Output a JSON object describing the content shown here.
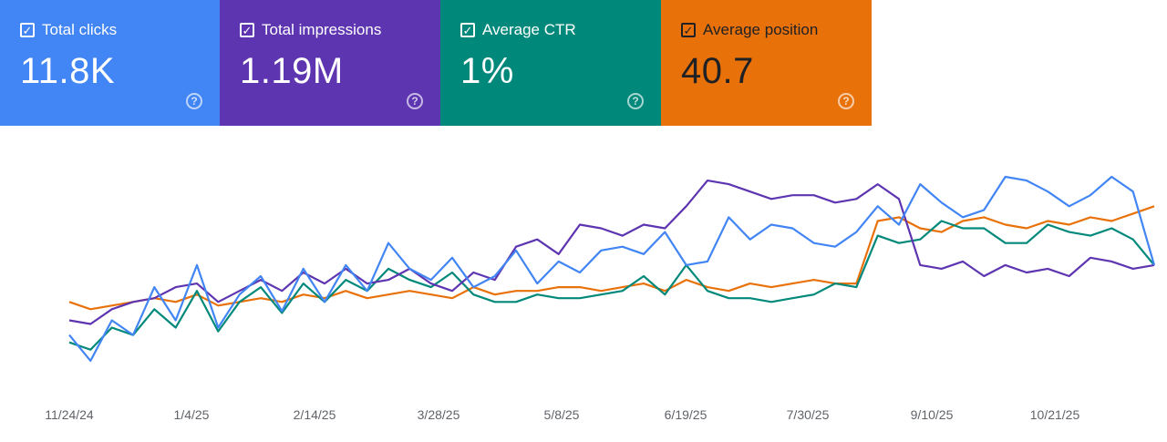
{
  "metrics": [
    {
      "label": "Total clicks",
      "value": "11.8K",
      "color": "#4285f4",
      "checked": true
    },
    {
      "label": "Total impressions",
      "value": "1.19M",
      "color": "#5e35b1",
      "checked": true
    },
    {
      "label": "Average CTR",
      "value": "1%",
      "color": "#00897b",
      "checked": true
    },
    {
      "label": "Average position",
      "value": "40.7",
      "color": "#e8710a",
      "checked": true
    }
  ],
  "icons": {
    "checkbox": "check-box-icon",
    "help": "help-circle-icon"
  },
  "chart_data": {
    "type": "line",
    "xlabel": "",
    "ylabel": "",
    "grid": false,
    "legend": "none (metric cards act as legend)",
    "x_ticks": [
      "11/24/24",
      "1/4/25",
      "2/14/25",
      "3/28/25",
      "5/8/25",
      "6/19/25",
      "7/30/25",
      "9/10/25",
      "10/21/25"
    ],
    "note_normalized": "each series independently scaled 0-100 (no y-axis shown)",
    "series": [
      {
        "name": "Total clicks",
        "color": "#4285f4",
        "values": [
          22,
          8,
          30,
          22,
          48,
          30,
          60,
          26,
          44,
          54,
          35,
          58,
          40,
          60,
          46,
          72,
          58,
          52,
          64,
          48,
          54,
          68,
          50,
          62,
          56,
          68,
          70,
          66,
          78,
          60,
          62,
          86,
          74,
          82,
          80,
          72,
          70,
          78,
          92,
          82,
          104,
          94,
          86,
          90,
          108,
          106,
          100,
          92,
          98,
          108,
          100,
          60
        ]
      },
      {
        "name": "Total impressions",
        "color": "#5e35b1",
        "values": [
          30,
          28,
          36,
          40,
          42,
          48,
          50,
          40,
          46,
          52,
          46,
          56,
          50,
          58,
          50,
          52,
          58,
          50,
          46,
          56,
          52,
          70,
          74,
          66,
          82,
          80,
          76,
          82,
          80,
          92,
          106,
          104,
          100,
          96,
          98,
          98,
          94,
          96,
          104,
          96,
          60,
          58,
          62,
          54,
          60,
          56,
          58,
          54,
          64,
          62,
          58,
          60
        ]
      },
      {
        "name": "Average CTR",
        "color": "#00897b",
        "values": [
          18,
          14,
          26,
          22,
          36,
          26,
          46,
          24,
          40,
          48,
          34,
          50,
          40,
          52,
          46,
          58,
          52,
          48,
          56,
          44,
          40,
          40,
          44,
          42,
          42,
          44,
          46,
          54,
          44,
          60,
          46,
          42,
          42,
          40,
          42,
          44,
          50,
          48,
          76,
          72,
          74,
          84,
          80,
          80,
          72,
          72,
          82,
          78,
          76,
          80,
          74,
          60
        ]
      },
      {
        "name": "Average position",
        "color": "#e8710a",
        "values": [
          40,
          36,
          38,
          40,
          42,
          40,
          44,
          38,
          40,
          42,
          40,
          44,
          42,
          46,
          42,
          44,
          46,
          44,
          42,
          48,
          44,
          46,
          46,
          48,
          48,
          46,
          48,
          50,
          46,
          52,
          48,
          46,
          50,
          48,
          50,
          52,
          50,
          50,
          84,
          86,
          80,
          78,
          84,
          86,
          82,
          80,
          84,
          82,
          86,
          84,
          88,
          92
        ]
      }
    ]
  }
}
